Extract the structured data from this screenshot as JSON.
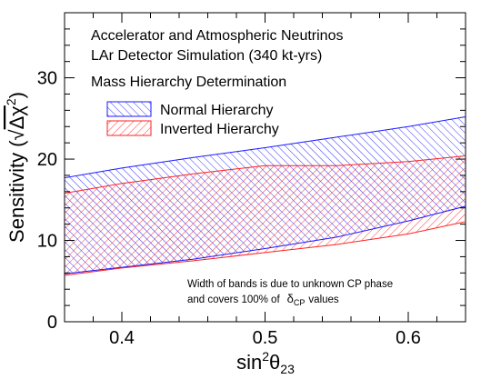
{
  "chart_data": {
    "type": "area",
    "annotations": {
      "line1": "Accelerator and Atmospheric Neutrinos",
      "line2": "LAr Detector Simulation (340 kt-yrs)",
      "line3": "Mass Hierarchy Determination",
      "note1": "Width of bands is due to unknown CP phase",
      "note2_prefix": "and covers 100% of",
      "note2_suffix": "values"
    },
    "xlabel": {
      "base": "sin",
      "sup": "2",
      "theta": "θ",
      "sub": "23"
    },
    "ylabel": {
      "main": "Sensitivity (",
      "root": "√",
      "delta": "Δχ",
      "sup": "2",
      "close": ")"
    },
    "delta_cp": {
      "delta": "δ",
      "sub": "CP"
    },
    "xlim": [
      0.36,
      0.64
    ],
    "ylim": [
      0,
      38
    ],
    "x_ticks": [
      0.4,
      0.5,
      0.6
    ],
    "x_tick_labels": [
      "0.4",
      "0.5",
      "0.6"
    ],
    "y_ticks": [
      0,
      10,
      20,
      30
    ],
    "y_tick_labels": [
      "0",
      "10",
      "20",
      "30"
    ],
    "grid": false,
    "legend": {
      "position": "top-left"
    },
    "series": [
      {
        "name": "Normal Hierarchy",
        "color": "#1a1aff",
        "hatch": "diagonal-up",
        "x": [
          0.36,
          0.4,
          0.45,
          0.5,
          0.55,
          0.6,
          0.64
        ],
        "upper": [
          17.7,
          18.9,
          20.2,
          21.4,
          22.7,
          24.0,
          25.2
        ],
        "lower": [
          5.9,
          6.7,
          7.7,
          9.0,
          10.4,
          12.4,
          14.2
        ]
      },
      {
        "name": "Inverted Hierarchy",
        "color": "#ff2020",
        "hatch": "diagonal-down",
        "x": [
          0.36,
          0.4,
          0.45,
          0.5,
          0.55,
          0.6,
          0.64
        ],
        "upper": [
          15.8,
          17.0,
          18.2,
          19.2,
          19.2,
          19.7,
          20.4
        ],
        "lower": [
          5.7,
          6.6,
          7.5,
          8.5,
          9.5,
          10.8,
          12.3
        ]
      }
    ]
  }
}
